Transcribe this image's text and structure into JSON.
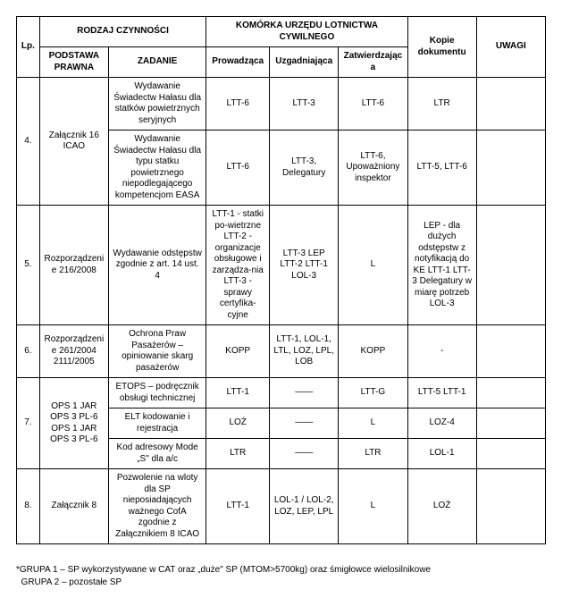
{
  "header": {
    "lp": "Lp.",
    "rodzaj": "RODZAJ CZYNNOŚCI",
    "podstawa": "PODSTAWA PRAWNA",
    "zadanie": "ZADANIE",
    "komorka": "KOMÓRKA URZĘDU LOTNICTWA CYWILNEGO",
    "prowadzaca": "Prowadząca",
    "uzgadniajaca": "Uzgadniająca",
    "zatwierdzajaca": "Zatwierdzająca",
    "kopie": "Kopie dokumentu",
    "uwagi": "UWAGI"
  },
  "rows": {
    "r4": {
      "lp": "4.",
      "podstawa": "Załącznik 16 ICAO",
      "zad_a": "Wydawanie Świadectw Hałasu dla statków powietrznych seryjnych",
      "a_prow": "LTT-6",
      "a_uzg": "LTT-3",
      "a_zat": "LTT-6",
      "a_kop": "LTR",
      "a_uw": "",
      "zad_b": "Wydawanie Świadectw Hałasu dla typu statku powietrznego niepodlegającego kompetencjom EASA",
      "b_prow": "LTT-6",
      "b_uzg": "LTT-3, Delegatury",
      "b_zat": "LTT-6, Upoważniony inspektor",
      "b_kop": "LTT-5, LTT-6",
      "b_uw": ""
    },
    "r5": {
      "lp": "5.",
      "podstawa": "Rozporządzenie 216/2008",
      "zad": "Wydawanie odstępstw zgodnie z  art. 14 ust. 4",
      "prow": "LTT-1 - statki po-wietrzne LTT-2 - organizacje obsługowe i zarządza-nia LTT-3 - sprawy certyfika-cyjne",
      "uzg": "LTT-3 LEP LTT-2 LTT-1 LOL-3",
      "zat": "L",
      "kop": "LEP - dla dużych odstępstw z notyfikacją do KE LTT-1 LTT-3 Delegatury w miarę potrzeb LOL-3",
      "uw": ""
    },
    "r6": {
      "lp": "6.",
      "podstawa": "Rozporządzenie 261/2004 2111/2005",
      "zad": "Ochrona Praw Pasażerów – opiniowanie skarg pasażerów",
      "prow": "KOPP",
      "uzg": "LTT-1, LOL-1, LTL, LOZ, LPL, LOB",
      "zat": "KOPP",
      "kop": "-",
      "uw": ""
    },
    "r7": {
      "lp": "7.",
      "podstawa": "OPS 1 JAR OPS 3 PL-6 OPS 1 JAR OPS 3 PL-6",
      "zad_a": "ETOPS – podręcznik obsługi technicznej",
      "a_prow": "LTT-1",
      "a_uzg": "——",
      "a_zat": "LTT-G",
      "a_kop": "LTT-5 LTT-1",
      "a_uw": "",
      "zad_b": "ELT kodowanie i rejestracja",
      "b_prow": "LOŻ",
      "b_uzg": "——",
      "b_zat": "L",
      "b_kop": "LOZ-4",
      "b_uw": "",
      "zad_c": "Kod adresowy Mode „S\" dla a/c",
      "c_prow": "LTR",
      "c_uzg": "——",
      "c_zat": "LTR",
      "c_kop": "LOL-1",
      "c_uw": ""
    },
    "r8": {
      "lp": "8.",
      "podstawa": "Załącznik 8",
      "zad": "Pozwolenie na wloty dla SP nieposiadających ważnego CofA zgodnie z Załącznikiem 8 ICAO",
      "prow": "LTT-1",
      "uzg": "LOL-1 / LOL-2, LOZ, LEP, LPL",
      "zat": "L",
      "kop": "LOŻ",
      "uw": ""
    }
  },
  "footer": {
    "l1": "*GRUPA 1 – SP wykorzystywane w CAT oraz „duże\" SP (MTOM>5700kg) oraz śmigłowce wielosilnikowe",
    "l2": "  GRUPA 2 – pozostałe SP"
  }
}
